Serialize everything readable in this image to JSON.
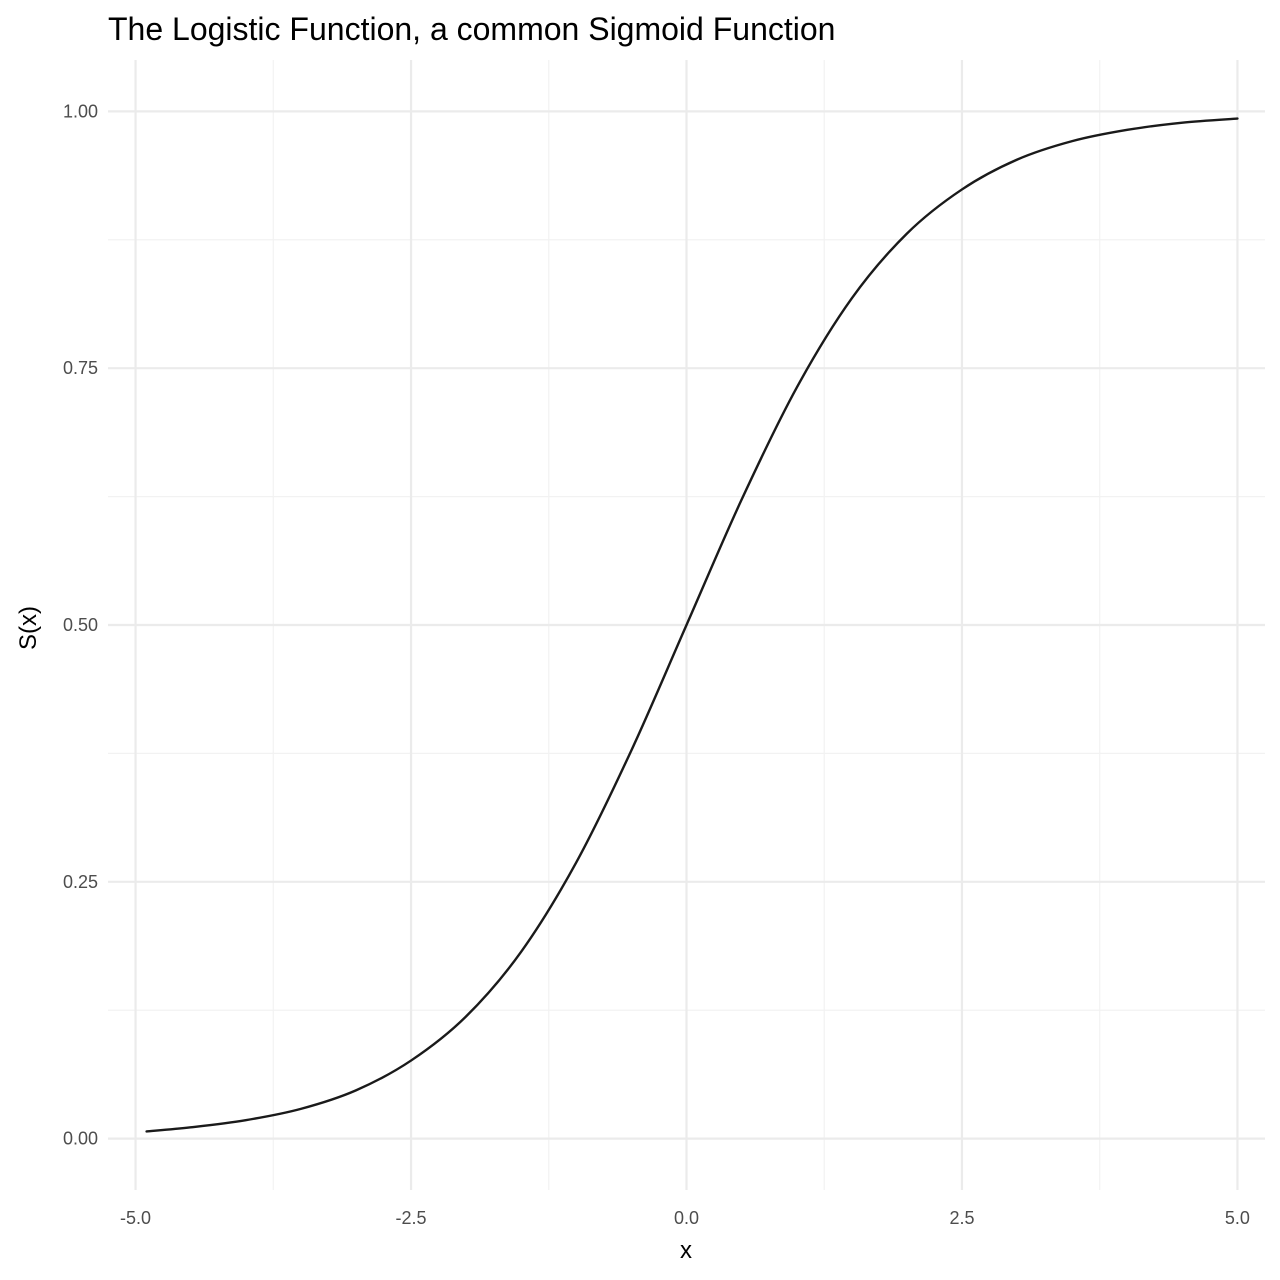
{
  "chart_data": {
    "type": "line",
    "title": "The Logistic Function, a common Sigmoid Function",
    "xlabel": "x",
    "ylabel": "S(x)",
    "xlim": [
      -5.25,
      5.25
    ],
    "ylim": [
      -0.05,
      1.05
    ],
    "x_ticks": [
      -5.0,
      -2.5,
      0.0,
      2.5,
      5.0
    ],
    "x_tick_labels": [
      "-5.0",
      "-2.5",
      "0.0",
      "2.5",
      "5.0"
    ],
    "y_ticks": [
      0.0,
      0.25,
      0.5,
      0.75,
      1.0
    ],
    "y_tick_labels": [
      "0.00",
      "0.25",
      "0.50",
      "0.75",
      "1.00"
    ],
    "grid": true,
    "legend": "none",
    "series": [
      {
        "color": "#1a1a1a",
        "x": [
          -4.9,
          -4.5,
          -4.0,
          -3.5,
          -3.0,
          -2.5,
          -2.0,
          -1.5,
          -1.0,
          -0.5,
          0.0,
          0.5,
          1.0,
          1.5,
          2.0,
          2.5,
          3.0,
          3.5,
          4.0,
          4.5,
          5.0
        ],
        "y": [
          0.007,
          0.011,
          0.018,
          0.029,
          0.047,
          0.076,
          0.119,
          0.182,
          0.269,
          0.378,
          0.5,
          0.622,
          0.731,
          0.818,
          0.881,
          0.924,
          0.953,
          0.971,
          0.982,
          0.989,
          0.993
        ]
      }
    ]
  }
}
